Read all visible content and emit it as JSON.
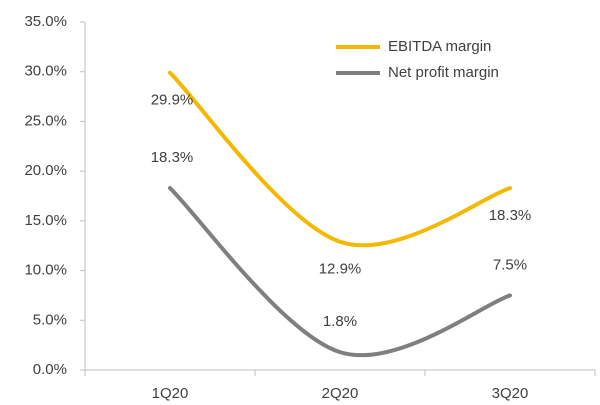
{
  "chart_data": {
    "type": "line",
    "categories": [
      "1Q20",
      "2Q20",
      "3Q20"
    ],
    "series": [
      {
        "name": "EBITDA margin",
        "color": "#f5b800",
        "values": [
          29.9,
          12.9,
          18.3
        ],
        "value_labels": [
          "29.9%",
          "12.9%",
          "18.3%"
        ]
      },
      {
        "name": "Net profit margin",
        "color": "#7f7f7f",
        "values": [
          18.3,
          1.8,
          7.5
        ],
        "value_labels": [
          "18.3%",
          "1.8%",
          "7.5%"
        ]
      }
    ],
    "ylim": [
      0,
      35
    ],
    "yticks": [
      {
        "value": 0,
        "label": "0.0%"
      },
      {
        "value": 5,
        "label": "5.0%"
      },
      {
        "value": 10,
        "label": "10.0%"
      },
      {
        "value": 15,
        "label": "15.0%"
      },
      {
        "value": 20,
        "label": "20.0%"
      },
      {
        "value": 25,
        "label": "25.0%"
      },
      {
        "value": 30,
        "label": "30.0%"
      },
      {
        "value": 35,
        "label": "35.0%"
      }
    ],
    "legend": "top-right",
    "smooth": true
  }
}
